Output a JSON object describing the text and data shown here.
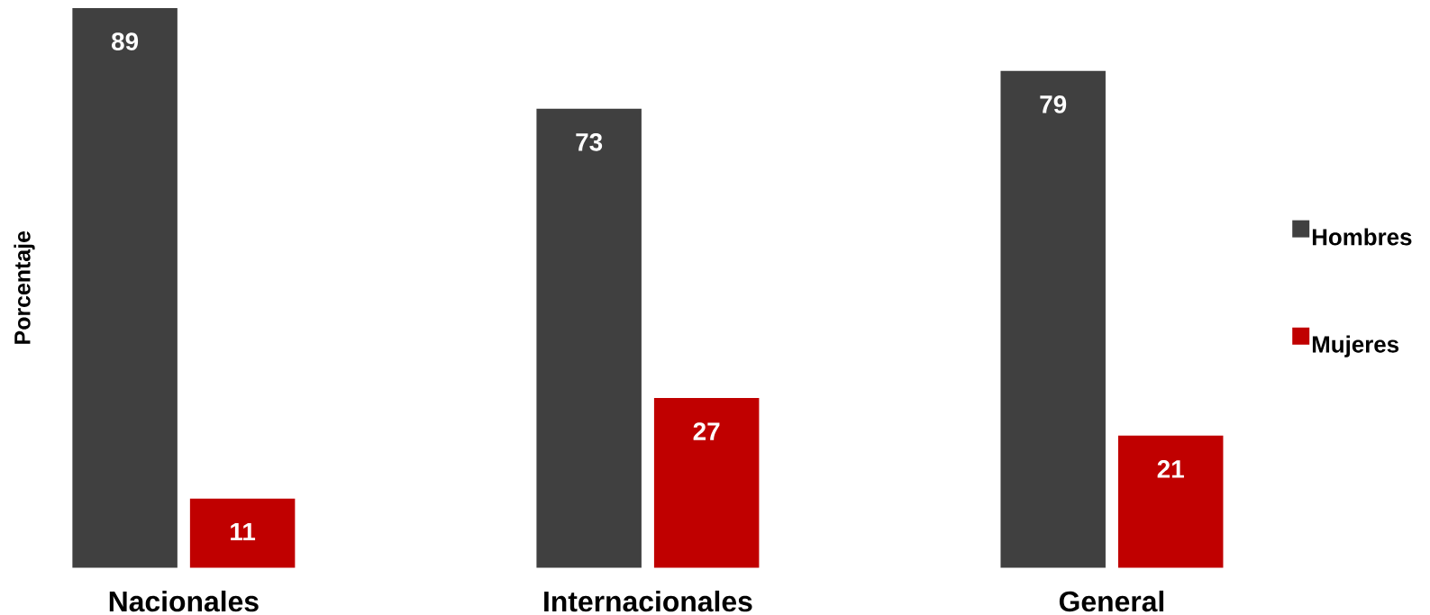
{
  "chart_data": {
    "type": "bar",
    "ylabel": "Porcentaje",
    "categories": [
      "Nacionales",
      "Internacionales",
      "General"
    ],
    "series": [
      {
        "name": "Hombres",
        "color": "#404040",
        "values": [
          89,
          73,
          79
        ]
      },
      {
        "name": "Mujeres",
        "color": "#c00000",
        "values": [
          11,
          27,
          21
        ]
      }
    ],
    "data_labels": true,
    "legend": "right"
  }
}
